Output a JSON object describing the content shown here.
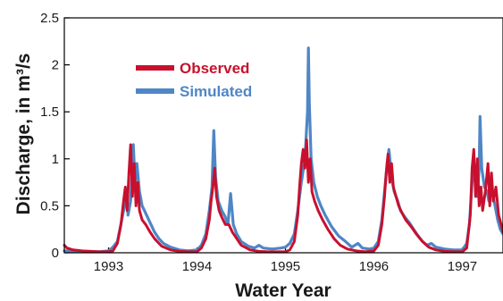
{
  "chart_data": {
    "type": "line",
    "xlabel": "Water Year",
    "ylabel": "Discharge, in m³/s",
    "x_ticks": [
      "1993",
      "1994",
      "1995",
      "1996",
      "1997"
    ],
    "y_ticks": [
      "0",
      "0.5",
      "1",
      "1.5",
      "2",
      "2.5"
    ],
    "ylim": [
      0,
      2.5
    ],
    "xlim": [
      1992.5,
      1997.46
    ],
    "legend_position": "top-left",
    "grid": false,
    "series": [
      {
        "name": "Observed",
        "color": "#c8102e",
        "points": [
          [
            1992.5,
            0.08
          ],
          [
            1992.53,
            0.05
          ],
          [
            1992.6,
            0.03
          ],
          [
            1992.7,
            0.02
          ],
          [
            1992.8,
            0.015
          ],
          [
            1992.9,
            0.01
          ],
          [
            1993.0,
            0.01
          ],
          [
            1993.05,
            0.02
          ],
          [
            1993.1,
            0.1
          ],
          [
            1993.14,
            0.3
          ],
          [
            1993.17,
            0.55
          ],
          [
            1993.19,
            0.7
          ],
          [
            1993.21,
            0.45
          ],
          [
            1993.23,
            0.85
          ],
          [
            1993.25,
            1.15
          ],
          [
            1993.27,
            0.6
          ],
          [
            1993.29,
            0.95
          ],
          [
            1993.31,
            0.5
          ],
          [
            1993.33,
            0.75
          ],
          [
            1993.35,
            0.45
          ],
          [
            1993.38,
            0.35
          ],
          [
            1993.42,
            0.3
          ],
          [
            1993.47,
            0.22
          ],
          [
            1993.52,
            0.15
          ],
          [
            1993.6,
            0.07
          ],
          [
            1993.7,
            0.03
          ],
          [
            1993.8,
            0.015
          ],
          [
            1993.9,
            0.01
          ],
          [
            1994.0,
            0.01
          ],
          [
            1994.05,
            0.05
          ],
          [
            1994.1,
            0.15
          ],
          [
            1994.14,
            0.35
          ],
          [
            1994.16,
            0.55
          ],
          [
            1994.18,
            0.7
          ],
          [
            1994.2,
            0.9
          ],
          [
            1994.22,
            0.6
          ],
          [
            1994.25,
            0.45
          ],
          [
            1994.28,
            0.38
          ],
          [
            1994.32,
            0.3
          ],
          [
            1994.36,
            0.3
          ],
          [
            1994.4,
            0.22
          ],
          [
            1994.45,
            0.15
          ],
          [
            1994.5,
            0.08
          ],
          [
            1994.6,
            0.03
          ],
          [
            1994.7,
            0.015
          ],
          [
            1994.8,
            0.01
          ],
          [
            1994.9,
            0.01
          ],
          [
            1995.0,
            0.01
          ],
          [
            1995.05,
            0.03
          ],
          [
            1995.1,
            0.12
          ],
          [
            1995.14,
            0.4
          ],
          [
            1995.16,
            0.7
          ],
          [
            1995.18,
            0.95
          ],
          [
            1995.2,
            1.1
          ],
          [
            1995.22,
            0.9
          ],
          [
            1995.24,
            1.2
          ],
          [
            1995.26,
            0.75
          ],
          [
            1995.28,
            1.0
          ],
          [
            1995.3,
            0.65
          ],
          [
            1995.33,
            0.55
          ],
          [
            1995.37,
            0.45
          ],
          [
            1995.42,
            0.35
          ],
          [
            1995.48,
            0.25
          ],
          [
            1995.55,
            0.15
          ],
          [
            1995.62,
            0.08
          ],
          [
            1995.7,
            0.04
          ],
          [
            1995.8,
            0.02
          ],
          [
            1995.9,
            0.01
          ],
          [
            1996.0,
            0.02
          ],
          [
            1996.05,
            0.08
          ],
          [
            1996.09,
            0.3
          ],
          [
            1996.12,
            0.6
          ],
          [
            1996.14,
            0.85
          ],
          [
            1996.16,
            1.05
          ],
          [
            1996.18,
            0.75
          ],
          [
            1996.2,
            0.95
          ],
          [
            1996.22,
            0.7
          ],
          [
            1996.25,
            0.6
          ],
          [
            1996.28,
            0.5
          ],
          [
            1996.32,
            0.42
          ],
          [
            1996.36,
            0.35
          ],
          [
            1996.42,
            0.28
          ],
          [
            1996.48,
            0.2
          ],
          [
            1996.55,
            0.12
          ],
          [
            1996.62,
            0.06
          ],
          [
            1996.7,
            0.03
          ],
          [
            1996.8,
            0.015
          ],
          [
            1996.9,
            0.01
          ],
          [
            1997.0,
            0.01
          ],
          [
            1997.05,
            0.05
          ],
          [
            1997.09,
            0.4
          ],
          [
            1997.11,
            0.9
          ],
          [
            1997.13,
            1.1
          ],
          [
            1997.15,
            0.6
          ],
          [
            1997.17,
            1.0
          ],
          [
            1997.19,
            0.5
          ],
          [
            1997.21,
            0.7
          ],
          [
            1997.23,
            0.45
          ],
          [
            1997.26,
            0.65
          ],
          [
            1997.29,
            0.95
          ],
          [
            1997.31,
            0.5
          ],
          [
            1997.33,
            0.85
          ],
          [
            1997.35,
            0.55
          ],
          [
            1997.38,
            0.7
          ],
          [
            1997.41,
            0.4
          ],
          [
            1997.44,
            0.3
          ],
          [
            1997.46,
            0.22
          ]
        ]
      },
      {
        "name": "Simulated",
        "color": "#4f86c6",
        "points": [
          [
            1992.5,
            0.02
          ],
          [
            1992.6,
            0.015
          ],
          [
            1992.7,
            0.01
          ],
          [
            1992.8,
            0.01
          ],
          [
            1992.9,
            0.01
          ],
          [
            1993.0,
            0.02
          ],
          [
            1993.05,
            0.06
          ],
          [
            1993.1,
            0.12
          ],
          [
            1993.15,
            0.35
          ],
          [
            1993.18,
            0.5
          ],
          [
            1993.2,
            0.65
          ],
          [
            1993.22,
            0.4
          ],
          [
            1993.25,
            0.55
          ],
          [
            1993.28,
            1.15
          ],
          [
            1993.3,
            0.75
          ],
          [
            1993.32,
            0.95
          ],
          [
            1993.35,
            0.65
          ],
          [
            1993.38,
            0.5
          ],
          [
            1993.42,
            0.42
          ],
          [
            1993.47,
            0.32
          ],
          [
            1993.52,
            0.22
          ],
          [
            1993.57,
            0.15
          ],
          [
            1993.62,
            0.1
          ],
          [
            1993.7,
            0.06
          ],
          [
            1993.8,
            0.03
          ],
          [
            1993.9,
            0.02
          ],
          [
            1994.0,
            0.03
          ],
          [
            1994.05,
            0.08
          ],
          [
            1994.1,
            0.2
          ],
          [
            1994.14,
            0.45
          ],
          [
            1994.17,
            0.7
          ],
          [
            1994.19,
            1.3
          ],
          [
            1994.21,
            0.8
          ],
          [
            1994.24,
            0.55
          ],
          [
            1994.28,
            0.45
          ],
          [
            1994.32,
            0.38
          ],
          [
            1994.35,
            0.3
          ],
          [
            1994.38,
            0.63
          ],
          [
            1994.41,
            0.3
          ],
          [
            1994.45,
            0.2
          ],
          [
            1994.5,
            0.12
          ],
          [
            1994.58,
            0.07
          ],
          [
            1994.65,
            0.05
          ],
          [
            1994.7,
            0.08
          ],
          [
            1994.75,
            0.05
          ],
          [
            1994.85,
            0.04
          ],
          [
            1994.95,
            0.05
          ],
          [
            1995.0,
            0.06
          ],
          [
            1995.05,
            0.1
          ],
          [
            1995.1,
            0.2
          ],
          [
            1995.14,
            0.45
          ],
          [
            1995.18,
            0.75
          ],
          [
            1995.22,
            1.0
          ],
          [
            1995.25,
            1.5
          ],
          [
            1995.26,
            2.18
          ],
          [
            1995.27,
            1.6
          ],
          [
            1995.29,
            1.0
          ],
          [
            1995.32,
            0.75
          ],
          [
            1995.36,
            0.6
          ],
          [
            1995.4,
            0.5
          ],
          [
            1995.45,
            0.4
          ],
          [
            1995.52,
            0.28
          ],
          [
            1995.6,
            0.18
          ],
          [
            1995.68,
            0.12
          ],
          [
            1995.75,
            0.06
          ],
          [
            1995.82,
            0.1
          ],
          [
            1995.87,
            0.05
          ],
          [
            1995.95,
            0.04
          ],
          [
            1996.0,
            0.05
          ],
          [
            1996.05,
            0.12
          ],
          [
            1996.09,
            0.35
          ],
          [
            1996.12,
            0.65
          ],
          [
            1996.15,
            0.95
          ],
          [
            1996.17,
            1.1
          ],
          [
            1996.2,
            0.8
          ],
          [
            1996.23,
            0.65
          ],
          [
            1996.27,
            0.55
          ],
          [
            1996.3,
            0.45
          ],
          [
            1996.35,
            0.38
          ],
          [
            1996.4,
            0.32
          ],
          [
            1996.45,
            0.25
          ],
          [
            1996.5,
            0.18
          ],
          [
            1996.55,
            0.12
          ],
          [
            1996.6,
            0.08
          ],
          [
            1996.65,
            0.1
          ],
          [
            1996.7,
            0.06
          ],
          [
            1996.8,
            0.04
          ],
          [
            1996.9,
            0.03
          ],
          [
            1997.0,
            0.03
          ],
          [
            1997.05,
            0.1
          ],
          [
            1997.08,
            0.3
          ],
          [
            1997.11,
            0.75
          ],
          [
            1997.14,
            0.85
          ],
          [
            1997.17,
            0.6
          ],
          [
            1997.19,
            0.9
          ],
          [
            1997.2,
            1.45
          ],
          [
            1997.22,
            0.9
          ],
          [
            1997.25,
            0.7
          ],
          [
            1997.28,
            0.65
          ],
          [
            1997.3,
            0.55
          ],
          [
            1997.33,
            0.7
          ],
          [
            1997.36,
            0.55
          ],
          [
            1997.4,
            0.35
          ],
          [
            1997.43,
            0.25
          ],
          [
            1997.46,
            0.2
          ]
        ]
      }
    ]
  }
}
